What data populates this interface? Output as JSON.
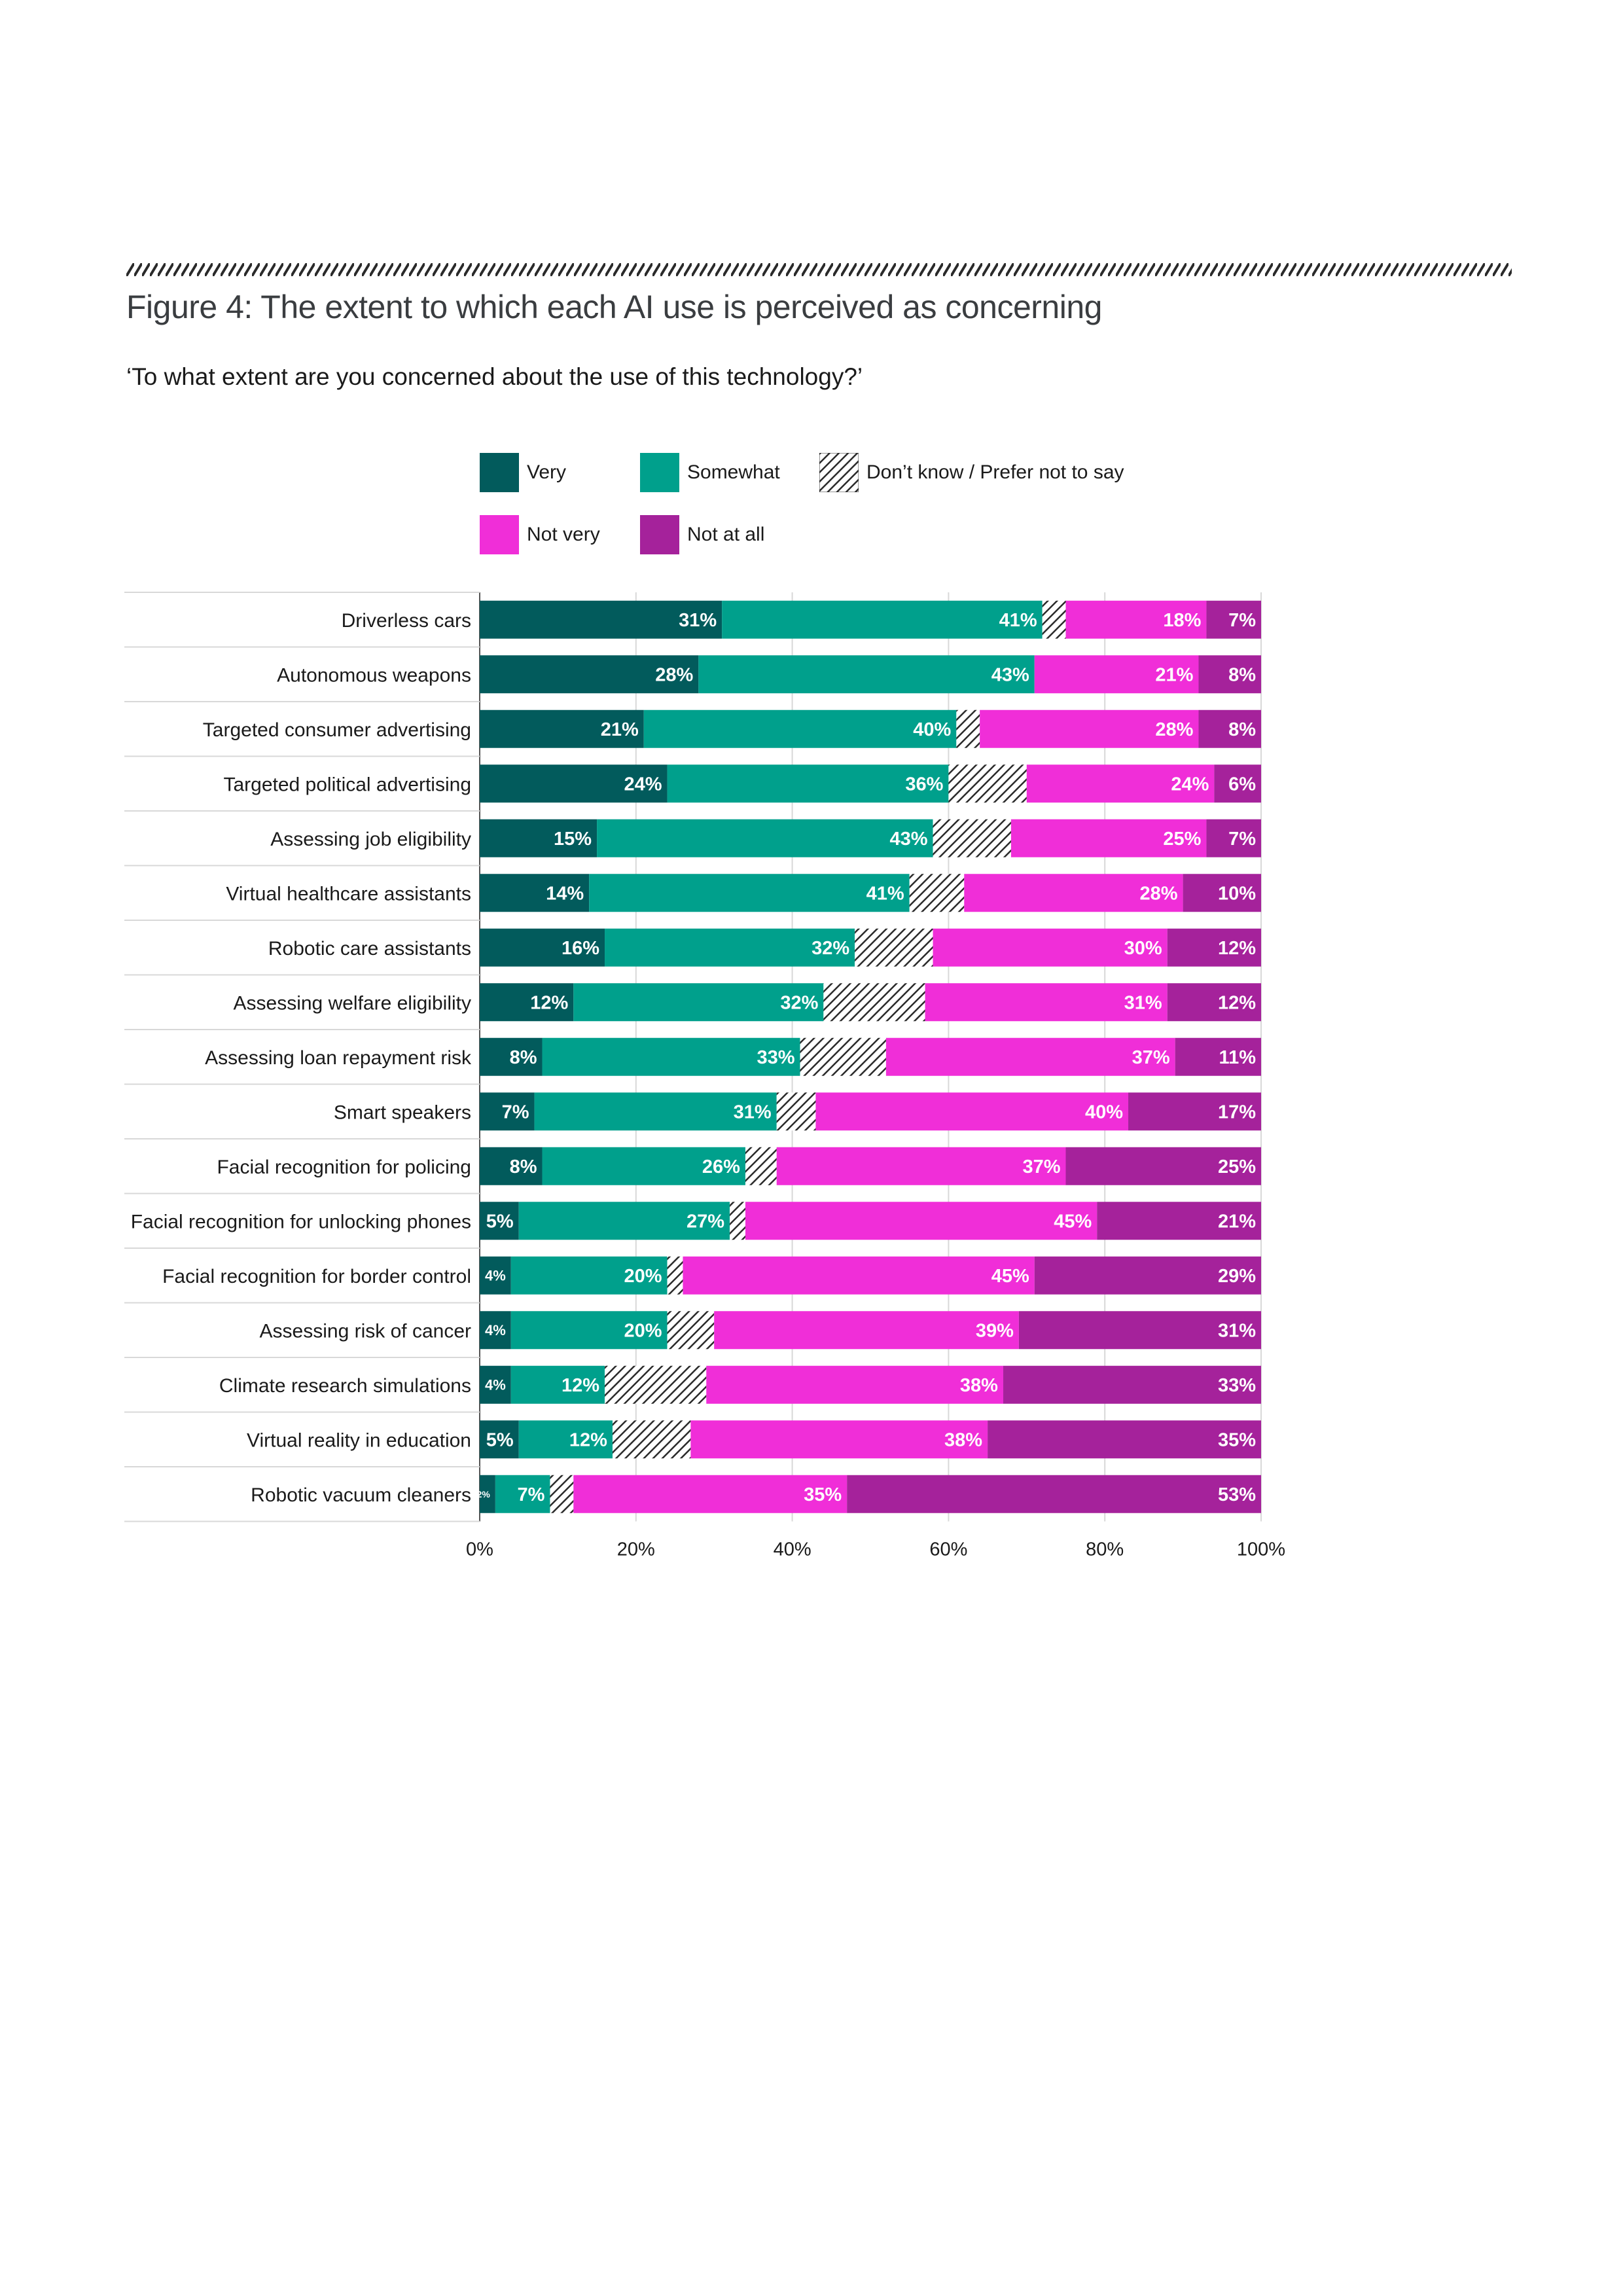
{
  "figure": {
    "title": "Figure 4: The extent to which each AI use is perceived as concerning",
    "subtitle": "‘To what extent are you concerned about the use of this technology?’"
  },
  "colors": {
    "very": "#025b5c",
    "somewhat": "#00a08c",
    "dont_know": "hatched",
    "not_very": "#f02ed8",
    "not_at_all": "#a5229b"
  },
  "legend": [
    {
      "key": "very",
      "label": "Very"
    },
    {
      "key": "somewhat",
      "label": "Somewhat"
    },
    {
      "key": "dont_know",
      "label": "Don’t know / Prefer not to say"
    },
    {
      "key": "not_very",
      "label": "Not very"
    },
    {
      "key": "not_at_all",
      "label": "Not at all"
    }
  ],
  "chart_data": {
    "type": "bar",
    "orientation": "horizontal",
    "stacked": true,
    "title": "Figure 4: The extent to which each AI use is perceived as concerning",
    "xlabel": "",
    "ylabel": "",
    "xlim": [
      0,
      100
    ],
    "x_ticks": [
      "0%",
      "20%",
      "40%",
      "60%",
      "80%",
      "100%"
    ],
    "legend_position": "top",
    "categories": [
      "Driverless cars",
      "Autonomous weapons",
      "Targeted consumer advertising",
      "Targeted political advertising",
      "Assessing job eligibility",
      "Virtual healthcare assistants",
      "Robotic care assistants",
      "Assessing welfare eligibility",
      "Assessing loan repayment risk",
      "Smart speakers",
      "Facial recognition for policing",
      "Facial recognition for unlocking phones",
      "Facial recognition for border control",
      "Assessing risk of cancer",
      "Climate research simulations",
      "Virtual reality in education",
      "Robotic vacuum cleaners"
    ],
    "series": [
      {
        "name": "Very",
        "key": "very",
        "values": [
          31,
          28,
          21,
          24,
          15,
          14,
          16,
          12,
          8,
          7,
          8,
          5,
          4,
          4,
          4,
          5,
          2
        ]
      },
      {
        "name": "Somewhat",
        "key": "somewhat",
        "values": [
          41,
          43,
          40,
          36,
          43,
          41,
          32,
          32,
          33,
          31,
          26,
          27,
          20,
          20,
          12,
          12,
          7
        ]
      },
      {
        "name": "Don’t know / Prefer not to say",
        "key": "dont_know",
        "values": [
          3,
          0,
          3,
          10,
          10,
          7,
          10,
          13,
          11,
          5,
          4,
          2,
          2,
          6,
          13,
          10,
          3
        ]
      },
      {
        "name": "Not very",
        "key": "not_very",
        "values": [
          18,
          21,
          28,
          24,
          25,
          28,
          30,
          31,
          37,
          40,
          37,
          45,
          45,
          39,
          38,
          38,
          35
        ]
      },
      {
        "name": "Not at all",
        "key": "not_at_all",
        "values": [
          7,
          8,
          8,
          6,
          7,
          10,
          12,
          12,
          11,
          17,
          25,
          21,
          29,
          31,
          33,
          35,
          53
        ]
      }
    ]
  }
}
